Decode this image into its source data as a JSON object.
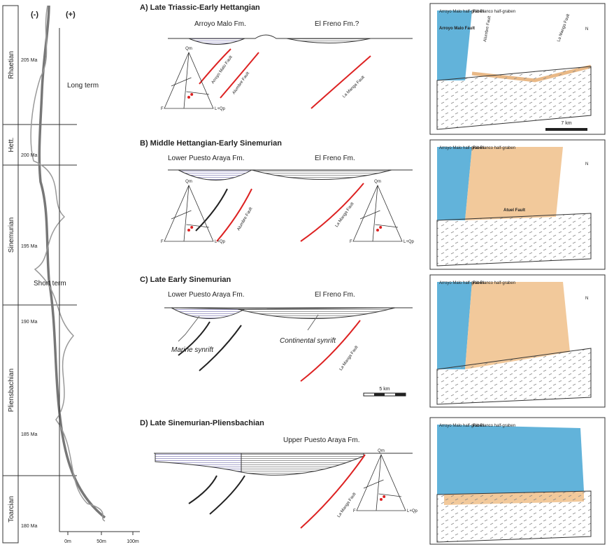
{
  "time_column": {
    "minus": "(-)",
    "plus": "(+)",
    "stages": [
      "Rhaetian",
      "Hett.",
      "Sinemurian",
      "Pliensbachian",
      "Toarcian"
    ],
    "ages": [
      "205 Ma",
      "200 Ma",
      "195 Ma",
      "190 Ma",
      "185 Ma",
      "180 Ma"
    ],
    "long_term": "Long term",
    "short_term": "Short term",
    "axis": [
      "0m",
      "50m",
      "100m"
    ]
  },
  "ternary": {
    "apex": "Qm",
    "left": "F",
    "right": "L+Qp"
  },
  "panels": [
    {
      "title": "A) Late Triassic-Early Hettangian",
      "left_unit": "Arroyo Malo Fm.",
      "right_unit": "El Freno Fm.?",
      "faults": [
        "Arroyo Malo Fault",
        "Alumbre Fault",
        "La Manga Fault"
      ]
    },
    {
      "title": "B) Middle Hettangian-Early Sinemurian",
      "left_unit": "Lower Puesto Araya Fm.",
      "right_unit": "El Freno Fm.",
      "faults": [
        "Alumbre Fault",
        "La Manga Fault"
      ]
    },
    {
      "title": "C) Late Early Sinemurian",
      "left_unit": "Lower Puesto Araya Fm.",
      "right_unit": "El Freno Fm.",
      "marine": "Marine synrift",
      "continental": "Continental synrift",
      "faults": [
        "La Manga Fault"
      ],
      "scale": "5 km"
    },
    {
      "title": "D) Late Sinemurian-Pliensbachian",
      "unit": "Upper Puesto Araya Fm.",
      "faults": [
        "La Manga Fault"
      ]
    }
  ],
  "blocks": {
    "left_graben": "Arroyo Malo half-graben",
    "right_graben": "Rio Blanco half-graben",
    "arroyo_fault": "Arroyo Malo Fault",
    "alumbre_fault": "Alumbre Fault",
    "manga_fault": "La Manga Fault",
    "atuel_fault": "Atuel Fault",
    "north": "N",
    "scale": "7 km"
  }
}
